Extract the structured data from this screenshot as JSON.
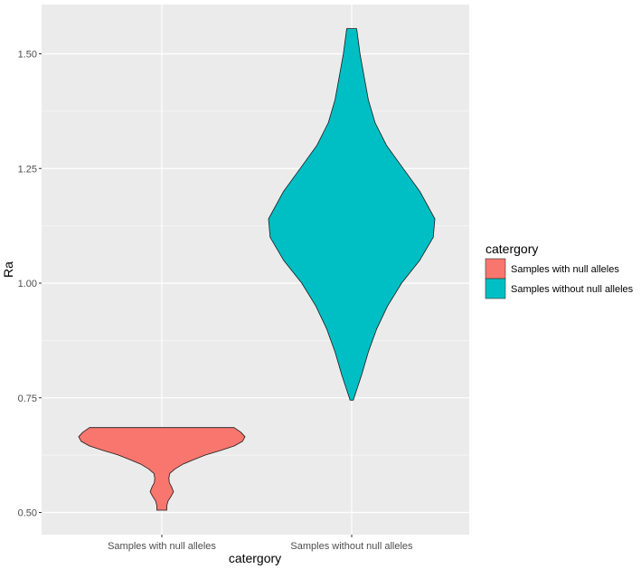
{
  "chart_data": {
    "type": "violin",
    "xlabel": "catergory",
    "ylabel": "Ra",
    "ylim": [
      0.48,
      1.57
    ],
    "yticks": [
      0.5,
      0.75,
      1.0,
      1.25,
      1.5
    ],
    "ytick_labels": [
      "0.50",
      "0.75",
      "1.00",
      "1.25",
      "1.50"
    ],
    "categories": [
      "Samples with null alleles",
      "Samples without null alleles"
    ],
    "grid": true,
    "legend": {
      "title": "catergory",
      "position": "right",
      "entries": [
        "Samples with null alleles",
        "Samples without null alleles"
      ]
    },
    "series": [
      {
        "category": "Samples with null alleles",
        "color": "#F8766D",
        "range": [
          0.505,
          0.685
        ],
        "density_profile": [
          [
            0.505,
            0.06
          ],
          [
            0.515,
            0.06
          ],
          [
            0.525,
            0.075
          ],
          [
            0.535,
            0.11
          ],
          [
            0.545,
            0.14
          ],
          [
            0.555,
            0.12
          ],
          [
            0.565,
            0.09
          ],
          [
            0.575,
            0.085
          ],
          [
            0.585,
            0.095
          ],
          [
            0.595,
            0.16
          ],
          [
            0.605,
            0.25
          ],
          [
            0.615,
            0.38
          ],
          [
            0.625,
            0.52
          ],
          [
            0.635,
            0.7
          ],
          [
            0.645,
            0.87
          ],
          [
            0.655,
            0.97
          ],
          [
            0.665,
            1.0
          ],
          [
            0.675,
            0.95
          ],
          [
            0.685,
            0.87
          ]
        ]
      },
      {
        "category": "Samples without null alleles",
        "color": "#00BFC4",
        "range": [
          0.745,
          1.555
        ],
        "density_profile": [
          [
            0.745,
            0.02
          ],
          [
            0.8,
            0.12
          ],
          [
            0.85,
            0.2
          ],
          [
            0.9,
            0.3
          ],
          [
            0.95,
            0.43
          ],
          [
            1.0,
            0.6
          ],
          [
            1.05,
            0.82
          ],
          [
            1.1,
            0.98
          ],
          [
            1.14,
            1.0
          ],
          [
            1.2,
            0.82
          ],
          [
            1.25,
            0.62
          ],
          [
            1.3,
            0.42
          ],
          [
            1.35,
            0.28
          ],
          [
            1.4,
            0.2
          ],
          [
            1.45,
            0.15
          ],
          [
            1.5,
            0.1
          ],
          [
            1.555,
            0.06
          ]
        ]
      }
    ]
  }
}
